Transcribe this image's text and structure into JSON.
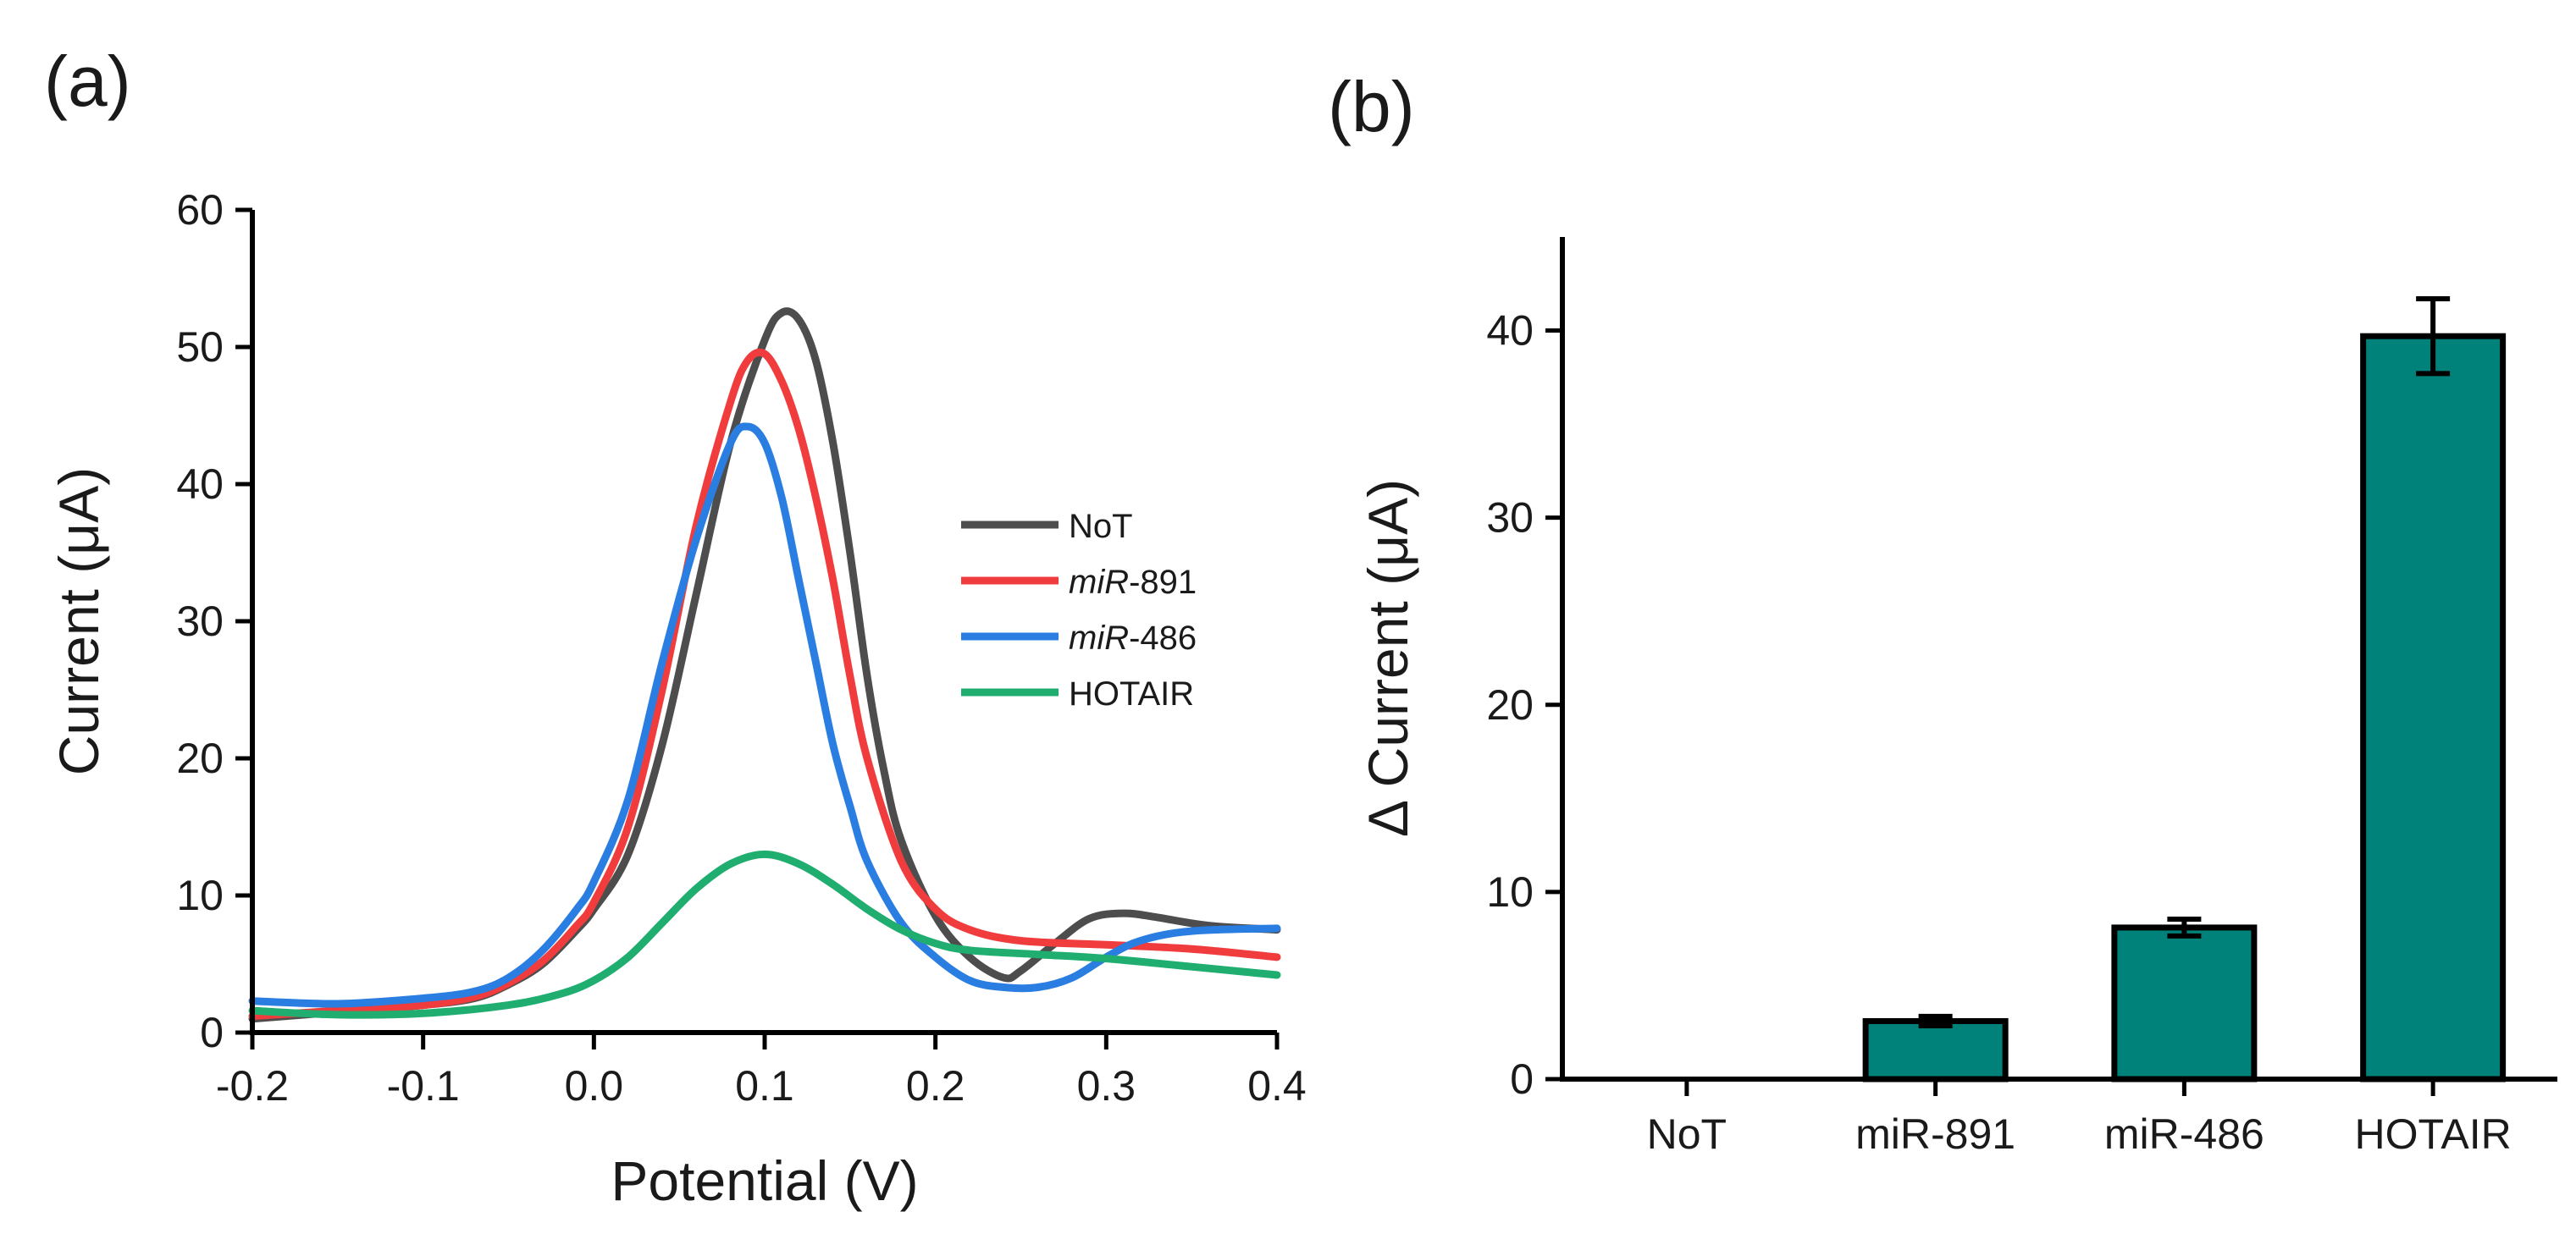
{
  "chart_data": [
    {
      "type": "line",
      "panel_label": "(a)",
      "xlabel": "Potential (V)",
      "ylabel": "Current (μA)",
      "xlim": [
        -0.2,
        0.4
      ],
      "ylim": [
        0,
        60
      ],
      "x_ticks": [
        -0.2,
        -0.1,
        0.0,
        0.1,
        0.2,
        0.3,
        0.4
      ],
      "x_tick_labels": [
        "-0.2",
        "-0.1",
        "0.0",
        "0.1",
        "0.2",
        "0.3",
        "0.4"
      ],
      "y_ticks": [
        0,
        10,
        20,
        30,
        40,
        50,
        60
      ],
      "y_tick_labels": [
        "0",
        "10",
        "20",
        "30",
        "40",
        "50",
        "60"
      ],
      "grid": false,
      "legend_position": "right",
      "series": [
        {
          "name": "NoT",
          "legend_parts": [
            {
              "text": "NoT",
              "italic": false
            }
          ],
          "color": "#4d4d4d",
          "points": [
            [
              -0.2,
              1.0
            ],
            [
              -0.15,
              1.5
            ],
            [
              -0.1,
              2.0
            ],
            [
              -0.07,
              2.5
            ],
            [
              -0.05,
              3.5
            ],
            [
              -0.03,
              5.0
            ],
            [
              -0.01,
              7.5
            ],
            [
              0.0,
              9.0
            ],
            [
              0.02,
              13.0
            ],
            [
              0.04,
              21.0
            ],
            [
              0.06,
              32.0
            ],
            [
              0.08,
              43.0
            ],
            [
              0.1,
              50.5
            ],
            [
              0.11,
              52.5
            ],
            [
              0.12,
              52.0
            ],
            [
              0.13,
              49.0
            ],
            [
              0.14,
              43.0
            ],
            [
              0.15,
              35.0
            ],
            [
              0.16,
              26.0
            ],
            [
              0.17,
              19.0
            ],
            [
              0.18,
              14.0
            ],
            [
              0.2,
              8.5
            ],
            [
              0.22,
              5.5
            ],
            [
              0.24,
              4.0
            ],
            [
              0.25,
              4.5
            ],
            [
              0.27,
              6.5
            ],
            [
              0.29,
              8.3
            ],
            [
              0.31,
              8.7
            ],
            [
              0.33,
              8.4
            ],
            [
              0.36,
              7.8
            ],
            [
              0.4,
              7.5
            ]
          ]
        },
        {
          "name": "miR-891",
          "legend_parts": [
            {
              "text": "miR",
              "italic": true
            },
            {
              "text": "-891",
              "italic": false
            }
          ],
          "color": "#f03c3c",
          "points": [
            [
              -0.2,
              1.2
            ],
            [
              -0.15,
              1.6
            ],
            [
              -0.1,
              2.0
            ],
            [
              -0.07,
              2.6
            ],
            [
              -0.05,
              3.6
            ],
            [
              -0.03,
              5.2
            ],
            [
              -0.01,
              7.8
            ],
            [
              0.0,
              9.5
            ],
            [
              0.02,
              15.0
            ],
            [
              0.04,
              25.0
            ],
            [
              0.06,
              37.0
            ],
            [
              0.08,
              46.0
            ],
            [
              0.09,
              49.0
            ],
            [
              0.1,
              49.5
            ],
            [
              0.11,
              47.5
            ],
            [
              0.12,
              44.0
            ],
            [
              0.13,
              39.0
            ],
            [
              0.14,
              33.0
            ],
            [
              0.15,
              26.0
            ],
            [
              0.16,
              20.0
            ],
            [
              0.18,
              12.5
            ],
            [
              0.2,
              9.0
            ],
            [
              0.22,
              7.5
            ],
            [
              0.25,
              6.7
            ],
            [
              0.3,
              6.4
            ],
            [
              0.35,
              6.1
            ],
            [
              0.4,
              5.5
            ]
          ]
        },
        {
          "name": "miR-486",
          "legend_parts": [
            {
              "text": "miR",
              "italic": true
            },
            {
              "text": "-486",
              "italic": false
            }
          ],
          "color": "#2a7de1",
          "points": [
            [
              -0.2,
              2.3
            ],
            [
              -0.15,
              2.1
            ],
            [
              -0.1,
              2.5
            ],
            [
              -0.07,
              3.0
            ],
            [
              -0.05,
              4.0
            ],
            [
              -0.03,
              6.0
            ],
            [
              -0.01,
              9.0
            ],
            [
              0.0,
              11.0
            ],
            [
              0.02,
              17.0
            ],
            [
              0.04,
              27.0
            ],
            [
              0.06,
              36.0
            ],
            [
              0.08,
              43.0
            ],
            [
              0.09,
              44.2
            ],
            [
              0.1,
              43.0
            ],
            [
              0.11,
              39.0
            ],
            [
              0.12,
              33.0
            ],
            [
              0.13,
              27.0
            ],
            [
              0.14,
              21.0
            ],
            [
              0.15,
              16.5
            ],
            [
              0.16,
              12.5
            ],
            [
              0.18,
              8.0
            ],
            [
              0.2,
              5.5
            ],
            [
              0.22,
              3.8
            ],
            [
              0.24,
              3.3
            ],
            [
              0.26,
              3.3
            ],
            [
              0.28,
              4.0
            ],
            [
              0.3,
              5.5
            ],
            [
              0.32,
              6.7
            ],
            [
              0.35,
              7.4
            ],
            [
              0.4,
              7.6
            ]
          ]
        },
        {
          "name": "HOTAIR",
          "legend_parts": [
            {
              "text": "HOTAIR",
              "italic": false
            }
          ],
          "color": "#1fae6f",
          "points": [
            [
              -0.2,
              1.6
            ],
            [
              -0.15,
              1.3
            ],
            [
              -0.1,
              1.4
            ],
            [
              -0.05,
              2.0
            ],
            [
              -0.02,
              2.8
            ],
            [
              0.0,
              3.8
            ],
            [
              0.02,
              5.5
            ],
            [
              0.04,
              8.0
            ],
            [
              0.06,
              10.5
            ],
            [
              0.08,
              12.3
            ],
            [
              0.1,
              13.0
            ],
            [
              0.12,
              12.3
            ],
            [
              0.14,
              10.8
            ],
            [
              0.16,
              9.0
            ],
            [
              0.18,
              7.5
            ],
            [
              0.2,
              6.5
            ],
            [
              0.22,
              6.0
            ],
            [
              0.26,
              5.7
            ],
            [
              0.3,
              5.4
            ],
            [
              0.35,
              4.8
            ],
            [
              0.4,
              4.2
            ]
          ]
        }
      ]
    },
    {
      "type": "bar",
      "panel_label": "(b)",
      "xlabel": "",
      "ylabel": "Δ Current (μA)",
      "ylim": [
        0,
        45
      ],
      "y_ticks": [
        0,
        10,
        20,
        30,
        40
      ],
      "y_tick_labels": [
        "0",
        "10",
        "20",
        "30",
        "40"
      ],
      "grid": false,
      "bar_color": "#00827a",
      "categories": [
        "NoT",
        "miR-891",
        "miR-486",
        "HOTAIR"
      ],
      "values": [
        0,
        3.1,
        8.1,
        39.7
      ],
      "errors": [
        0,
        0.25,
        0.45,
        2.0
      ]
    }
  ]
}
